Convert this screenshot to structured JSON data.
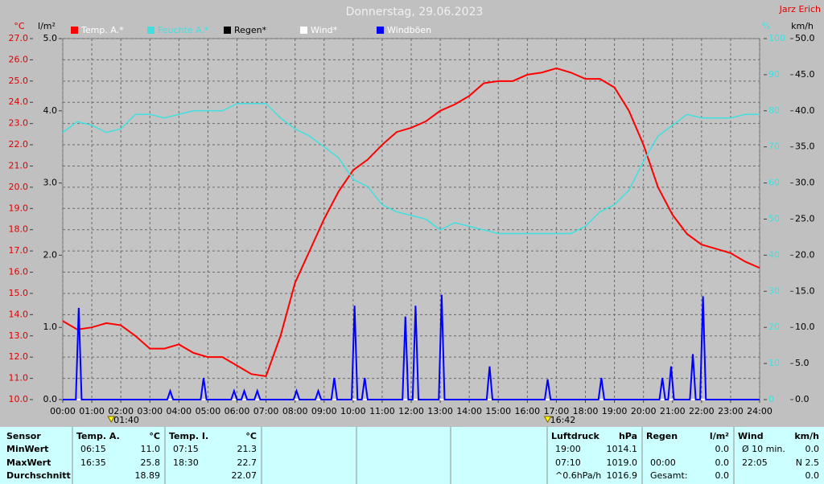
{
  "chart_data": {
    "type": "line",
    "title": "Donnerstag, 29.06.2023",
    "author": "Jarz Erich",
    "units": {
      "temp": "°C",
      "rain": "l/m²",
      "hum": "%",
      "wind": "km/h"
    },
    "xlim": [
      0,
      24
    ],
    "xticks": [
      {
        "value": 0,
        "label": "00:00"
      },
      {
        "value": 1,
        "label": "01:00"
      },
      {
        "value": 2,
        "label": "02:00"
      },
      {
        "value": 3,
        "label": "03:00"
      },
      {
        "value": 4,
        "label": "04:00"
      },
      {
        "value": 5,
        "label": "05:00"
      },
      {
        "value": 6,
        "label": "06:00"
      },
      {
        "value": 7,
        "label": "07:00"
      },
      {
        "value": 8,
        "label": "08:00"
      },
      {
        "value": 9,
        "label": "09:00"
      },
      {
        "value": 10,
        "label": "10:00"
      },
      {
        "value": 11,
        "label": "11:00"
      },
      {
        "value": 12,
        "label": "12:00"
      },
      {
        "value": 13,
        "label": "13:00"
      },
      {
        "value": 14,
        "label": "14:00"
      },
      {
        "value": 15,
        "label": "15:00"
      },
      {
        "value": 16,
        "label": "16:00"
      },
      {
        "value": 17,
        "label": "17:00"
      },
      {
        "value": 18,
        "label": "18:00"
      },
      {
        "value": 19,
        "label": "19:00"
      },
      {
        "value": 20,
        "label": "20:00"
      },
      {
        "value": 21,
        "label": "21:00"
      },
      {
        "value": 22,
        "label": "22:00"
      },
      {
        "value": 23,
        "label": "23:00"
      },
      {
        "value": 24,
        "label": "24:00"
      }
    ],
    "ylim": [
      10,
      27
    ],
    "yticks": [
      {
        "value": 10,
        "label": "10.0"
      },
      {
        "value": 11,
        "label": "11.0"
      },
      {
        "value": 12,
        "label": "12.0"
      },
      {
        "value": 13,
        "label": "13.0"
      },
      {
        "value": 14,
        "label": "14.0"
      },
      {
        "value": 15,
        "label": "15.0"
      },
      {
        "value": 16,
        "label": "16.0"
      },
      {
        "value": 17,
        "label": "17.0"
      },
      {
        "value": 18,
        "label": "18.0"
      },
      {
        "value": 19,
        "label": "19.0"
      },
      {
        "value": 20,
        "label": "20.0"
      },
      {
        "value": 21,
        "label": "21.0"
      },
      {
        "value": 22,
        "label": "22.0"
      },
      {
        "value": 23,
        "label": "23.0"
      },
      {
        "value": 24,
        "label": "24.0"
      },
      {
        "value": 25,
        "label": "25.0"
      },
      {
        "value": 26,
        "label": "26.0"
      },
      {
        "value": 27,
        "label": "27.0"
      }
    ],
    "rainlim": [
      0,
      5
    ],
    "rainticks": [
      {
        "value": 0,
        "label": "0.0"
      },
      {
        "value": 1,
        "label": "1.0"
      },
      {
        "value": 2,
        "label": "2.0"
      },
      {
        "value": 3,
        "label": "3.0"
      },
      {
        "value": 4,
        "label": "4.0"
      },
      {
        "value": 5,
        "label": "5.0"
      }
    ],
    "y2lim": [
      0,
      100
    ],
    "y2ticks": [
      0,
      10,
      20,
      30,
      40,
      50,
      60,
      70,
      80,
      90,
      100
    ],
    "windlim": [
      0,
      50
    ],
    "windticks": [
      {
        "value": 0,
        "label": "0.0"
      },
      {
        "value": 5,
        "label": "5.0"
      },
      {
        "value": 10,
        "label": "10.0"
      },
      {
        "value": 15,
        "label": "15.0"
      },
      {
        "value": 20,
        "label": "20.0"
      },
      {
        "value": 25,
        "label": "25.0"
      },
      {
        "value": 30,
        "label": "30.0"
      },
      {
        "value": 35,
        "label": "35.0"
      },
      {
        "value": 40,
        "label": "40.0"
      },
      {
        "value": 45,
        "label": "45.0"
      },
      {
        "value": 50,
        "label": "50.0"
      }
    ],
    "grid": true,
    "annotations": [
      {
        "value": 1.667,
        "label": "01:40"
      },
      {
        "value": 16.7,
        "label": "16:42"
      }
    ],
    "series": [
      {
        "name": "Temp. A.*",
        "color": "#ff0000",
        "axis": "y",
        "x": [
          0,
          0.5,
          1,
          1.5,
          2,
          2.5,
          3,
          3.5,
          4,
          4.5,
          5,
          5.5,
          6,
          6.5,
          7,
          7.5,
          8,
          8.5,
          9,
          9.5,
          10,
          10.5,
          11,
          11.5,
          12,
          12.5,
          13,
          13.5,
          14,
          14.5,
          15,
          15.5,
          16,
          16.5,
          17,
          17.5,
          18,
          18.5,
          19,
          19.5,
          20,
          20.5,
          21,
          21.5,
          22,
          22.5,
          23,
          23.5,
          24
        ],
        "values": [
          13.7,
          13.3,
          13.4,
          13.6,
          13.5,
          13.0,
          12.4,
          12.4,
          12.6,
          12.2,
          12.0,
          12.0,
          11.6,
          11.2,
          11.1,
          13.0,
          15.5,
          17.0,
          18.5,
          19.8,
          20.8,
          21.3,
          22.0,
          22.6,
          22.8,
          23.1,
          23.6,
          23.9,
          24.3,
          24.9,
          25.0,
          25.0,
          25.3,
          25.4,
          25.6,
          25.4,
          25.1,
          25.1,
          24.7,
          23.6,
          22.0,
          20.0,
          18.7,
          17.8,
          17.3,
          17.1,
          16.9,
          16.5,
          16.2
        ]
      },
      {
        "name": "Feuchte A.*",
        "color": "#40e0e0",
        "axis": "y2",
        "x": [
          0,
          0.5,
          1,
          1.5,
          2,
          2.5,
          3,
          3.5,
          4,
          4.5,
          5,
          5.5,
          6,
          6.5,
          7,
          7.5,
          8,
          8.5,
          9,
          9.5,
          10,
          10.5,
          11,
          11.5,
          12,
          12.5,
          13,
          13.5,
          14,
          14.5,
          15,
          15.5,
          16,
          16.5,
          17,
          17.5,
          18,
          18.5,
          19,
          19.5,
          20,
          20.5,
          21,
          21.5,
          22,
          22.5,
          23,
          23.5,
          24
        ],
        "values": [
          74,
          77,
          76,
          74,
          75,
          79,
          79,
          78,
          79,
          80,
          80,
          80,
          82,
          82,
          82,
          78,
          75,
          73,
          70,
          67,
          61,
          59,
          54,
          52,
          51,
          50,
          47,
          49,
          48,
          47,
          46,
          46,
          46,
          46,
          46,
          46,
          48,
          52,
          54,
          58,
          66,
          73,
          76,
          79,
          78,
          78,
          78,
          79,
          79
        ]
      },
      {
        "name": "Regen*",
        "color": "#000000",
        "axis": "rain",
        "x": [
          0,
          24
        ],
        "values": [
          0,
          0
        ]
      },
      {
        "name": "Wind*",
        "color": "#ffffff",
        "axis": "wind",
        "x": [
          0,
          24
        ],
        "values": [
          0,
          0
        ]
      },
      {
        "name": "Windböen",
        "color": "#0000ff",
        "axis": "wind",
        "x": [
          0,
          0.45,
          0.55,
          0.65,
          3.6,
          3.7,
          3.8,
          4.75,
          4.85,
          4.95,
          5.8,
          5.9,
          6.0,
          6.15,
          6.25,
          6.35,
          6.6,
          6.7,
          6.8,
          7.95,
          8.05,
          8.15,
          8.7,
          8.8,
          8.9,
          9.25,
          9.35,
          9.45,
          9.95,
          10.05,
          10.15,
          10.3,
          10.4,
          10.5,
          11.7,
          11.8,
          11.9,
          12.05,
          12.15,
          12.25,
          12.95,
          13.05,
          13.15,
          14.6,
          14.7,
          14.8,
          16.6,
          16.7,
          16.8,
          18.45,
          18.55,
          18.65,
          20.55,
          20.65,
          20.75,
          20.85,
          20.95,
          21.05,
          21.6,
          21.7,
          21.8,
          21.95,
          22.05,
          22.15,
          24
        ],
        "values": [
          0,
          0,
          12.7,
          0,
          0,
          1.2,
          0,
          0,
          3.0,
          0,
          0,
          1.2,
          0,
          0,
          1.2,
          0,
          0,
          1.2,
          0,
          0,
          1.2,
          0,
          0,
          1.2,
          0,
          0,
          3.0,
          0,
          0,
          13.0,
          0,
          0,
          3.0,
          0,
          0,
          11.5,
          0,
          0,
          13.0,
          0,
          0,
          14.5,
          0,
          0,
          4.6,
          0,
          0,
          2.8,
          0,
          0,
          3.0,
          0,
          0,
          3.0,
          0,
          0,
          4.6,
          0,
          0,
          6.3,
          0,
          0,
          14.3,
          0,
          0
        ]
      }
    ]
  },
  "table": {
    "sensor": [
      "Sensor",
      "MinWert",
      "MaxWert",
      "Durchschnitt"
    ],
    "columns": [
      {
        "header": [
          "Temp. A.",
          "°C"
        ],
        "rows": [
          [
            "06:15",
            "11.0"
          ],
          [
            "16:35",
            "25.8"
          ],
          [
            "18.89"
          ]
        ]
      },
      {
        "header": [
          "Temp. I.",
          "°C"
        ],
        "rows": [
          [
            "07:15",
            "21.3"
          ],
          [
            "18:30",
            "22.7"
          ],
          [
            "22.07"
          ]
        ]
      },
      {
        "header": [
          "Luftdruck",
          "hPa"
        ],
        "rows": [
          [
            "19:00",
            "1014.1"
          ],
          [
            "07:10",
            "1019.0"
          ],
          [
            "^0.6hPa/h",
            "1016.9"
          ]
        ]
      },
      {
        "header": [
          "Regen",
          "l/m²"
        ],
        "rows": [
          [
            "0.0"
          ],
          [
            "00:00",
            "0.0"
          ],
          [
            "Gesamt:",
            "0.0"
          ]
        ]
      },
      {
        "header": [
          "Wind",
          "km/h"
        ],
        "rows": [
          [
            "Ø 10 min.",
            "0.0"
          ],
          [
            "22:05",
            "N 2.5"
          ],
          [
            "0.0"
          ]
        ]
      }
    ]
  }
}
